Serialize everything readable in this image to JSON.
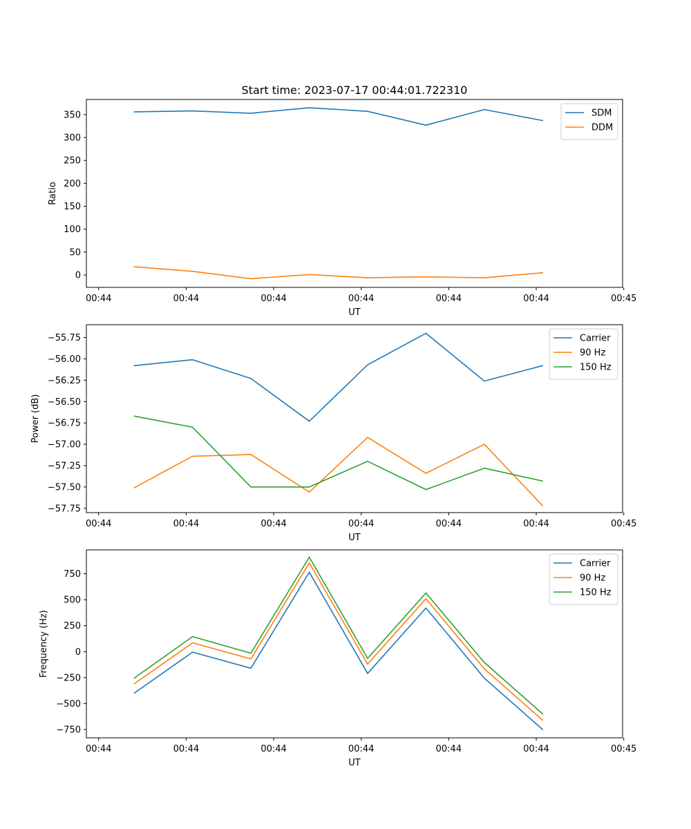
{
  "figure": {
    "title": "Start time: 2023-07-17 00:44:01.722310"
  },
  "chart_data": [
    {
      "type": "line",
      "title": "Start time: 2023-07-17 00:44:01.722310",
      "xlabel": "UT",
      "ylabel": "Ratio",
      "x": [
        1,
        2,
        3,
        4,
        5,
        6,
        7,
        8
      ],
      "xlim": [
        0.18,
        9.37
      ],
      "x_ticks": [
        0.39,
        1.89,
        3.39,
        4.89,
        6.39,
        7.89,
        9.39
      ],
      "x_tick_labels": [
        "00:44",
        "00:44",
        "00:44",
        "00:44",
        "00:44",
        "00:44",
        "00:45"
      ],
      "ylim": [
        -27,
        383
      ],
      "y_ticks": [
        0,
        50,
        100,
        150,
        200,
        250,
        300,
        350
      ],
      "y_tick_labels": [
        "0",
        "50",
        "100",
        "150",
        "200",
        "250",
        "300",
        "350"
      ],
      "legend_position": "top-right",
      "series": [
        {
          "name": "SDM",
          "color": "#1f77b4",
          "values": [
            356,
            358,
            353,
            365,
            357,
            327,
            361,
            337
          ]
        },
        {
          "name": "DDM",
          "color": "#ff7f0e",
          "values": [
            18,
            8,
            -8,
            1,
            -6,
            -4,
            -6,
            5
          ]
        }
      ]
    },
    {
      "type": "line",
      "title": "",
      "xlabel": "UT",
      "ylabel": "Power (dB)",
      "x": [
        1,
        2,
        3,
        4,
        5,
        6,
        7,
        8
      ],
      "xlim": [
        0.18,
        9.37
      ],
      "x_ticks": [
        0.39,
        1.89,
        3.39,
        4.89,
        6.39,
        7.89,
        9.39
      ],
      "x_tick_labels": [
        "00:44",
        "00:44",
        "00:44",
        "00:44",
        "00:44",
        "00:44",
        "00:45"
      ],
      "ylim": [
        -57.8,
        -55.6
      ],
      "y_ticks": [
        -57.75,
        -57.5,
        -57.25,
        -57.0,
        -56.75,
        -56.5,
        -56.25,
        -56.0,
        -55.75
      ],
      "y_tick_labels": [
        "−57.75",
        "−57.50",
        "−57.25",
        "−57.00",
        "−56.75",
        "−56.50",
        "−56.25",
        "−56.00",
        "−55.75"
      ],
      "legend_position": "top-right",
      "series": [
        {
          "name": "Carrier",
          "color": "#1f77b4",
          "values": [
            -56.08,
            -56.01,
            -56.23,
            -56.73,
            -56.07,
            -55.7,
            -56.26,
            -56.08
          ]
        },
        {
          "name": "90 Hz",
          "color": "#ff7f0e",
          "values": [
            -57.51,
            -57.14,
            -57.12,
            -57.56,
            -56.92,
            -57.34,
            -57.0,
            -57.72
          ]
        },
        {
          "name": "150 Hz",
          "color": "#2ca02c",
          "values": [
            -56.67,
            -56.8,
            -57.5,
            -57.5,
            -57.2,
            -57.53,
            -57.28,
            -57.43
          ]
        }
      ]
    },
    {
      "type": "line",
      "title": "",
      "xlabel": "UT",
      "ylabel": "Frequency (Hz)",
      "x": [
        1,
        2,
        3,
        4,
        5,
        6,
        7,
        8
      ],
      "xlim": [
        0.18,
        9.37
      ],
      "x_ticks": [
        0.39,
        1.89,
        3.39,
        4.89,
        6.39,
        7.89,
        9.39
      ],
      "x_tick_labels": [
        "00:44",
        "00:44",
        "00:44",
        "00:44",
        "00:44",
        "00:44",
        "00:45"
      ],
      "ylim": [
        -830,
        980
      ],
      "y_ticks": [
        -750,
        -500,
        -250,
        0,
        250,
        500,
        750
      ],
      "y_tick_labels": [
        "−750",
        "−500",
        "−250",
        "0",
        "250",
        "500",
        "750"
      ],
      "legend_position": "top-right",
      "series": [
        {
          "name": "Carrier",
          "color": "#1f77b4",
          "values": [
            -400,
            -5,
            -160,
            765,
            -210,
            420,
            -255,
            -750
          ]
        },
        {
          "name": "90 Hz",
          "color": "#ff7f0e",
          "values": [
            -310,
            85,
            -70,
            855,
            -120,
            510,
            -165,
            -660
          ]
        },
        {
          "name": "150 Hz",
          "color": "#2ca02c",
          "values": [
            -255,
            145,
            -15,
            910,
            -65,
            565,
            -105,
            -600
          ]
        }
      ]
    }
  ]
}
